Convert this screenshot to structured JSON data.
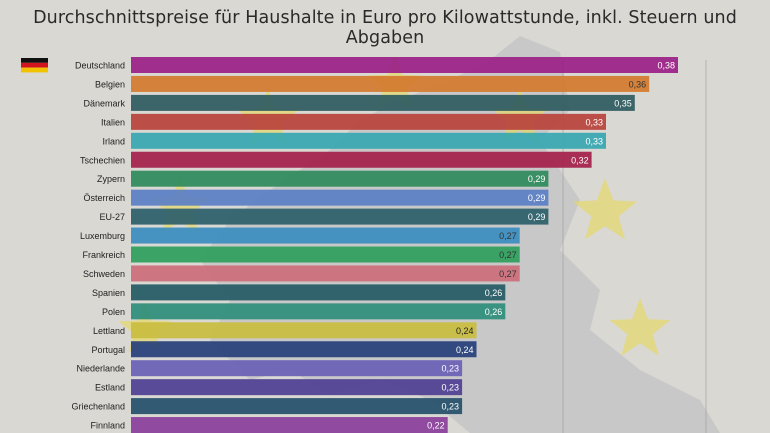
{
  "chart_data": {
    "type": "bar",
    "orientation": "horizontal",
    "title": "Durchschnittspreise für Haushalte in Euro pro Kilowattstunde, inkl. Steuern und Abgaben",
    "xlabel": "",
    "ylabel": "",
    "xlim": [
      0,
      0.4
    ],
    "grid": false,
    "categories": [
      "Deutschland",
      "Belgien",
      "Dänemark",
      "Italien",
      "Irland",
      "Tschechien",
      "Zypern",
      "Österreich",
      "EU-27",
      "Luxemburg",
      "Frankreich",
      "Schweden",
      "Spanien",
      "Polen",
      "Lettland",
      "Portugal",
      "Niederlande",
      "Estland",
      "Griechenland",
      "Finnland"
    ],
    "values": [
      0.38,
      0.36,
      0.35,
      0.33,
      0.33,
      0.32,
      0.29,
      0.29,
      0.29,
      0.27,
      0.27,
      0.27,
      0.26,
      0.26,
      0.24,
      0.24,
      0.23,
      0.23,
      0.23,
      0.22
    ],
    "labels": [
      "0,38",
      "0,36",
      "0,35",
      "0,33",
      "0,33",
      "0,32",
      "0,29",
      "0,29",
      "0,29",
      "0,27",
      "0,27",
      "0,27",
      "0,26",
      "0,26",
      "0,24",
      "0,24",
      "0,23",
      "0,23",
      "0,23",
      "0,22"
    ],
    "colors": [
      "#9b1f86",
      "#d47a2e",
      "#2f5b60",
      "#b8433c",
      "#37a7b1",
      "#a5204a",
      "#2e8a5c",
      "#5a7fc4",
      "#2b5e6a",
      "#3a8dbf",
      "#2e9e5b",
      "#cc6e7b",
      "#245a64",
      "#2e8d7a",
      "#c9bd3f",
      "#253f7a",
      "#6a5fb6",
      "#4f3f92",
      "#24506a",
      "#8a3e9a"
    ],
    "label_colors": [
      "#ffffff",
      "#333333",
      "#ffffff",
      "#ffffff",
      "#ffffff",
      "#ffffff",
      "#ffffff",
      "#ffffff",
      "#ffffff",
      "#333333",
      "#333333",
      "#333333",
      "#ffffff",
      "#ffffff",
      "#222222",
      "#ffffff",
      "#ffffff",
      "#ffffff",
      "#ffffff",
      "#ffffff"
    ],
    "flag": {
      "country": "Deutschland",
      "colors": [
        "#111111",
        "#d2141e",
        "#f2c100"
      ]
    },
    "background_colors": {
      "page": "#d9d8d3",
      "map": "#b9bcbf",
      "star": "#e7d95a"
    }
  }
}
